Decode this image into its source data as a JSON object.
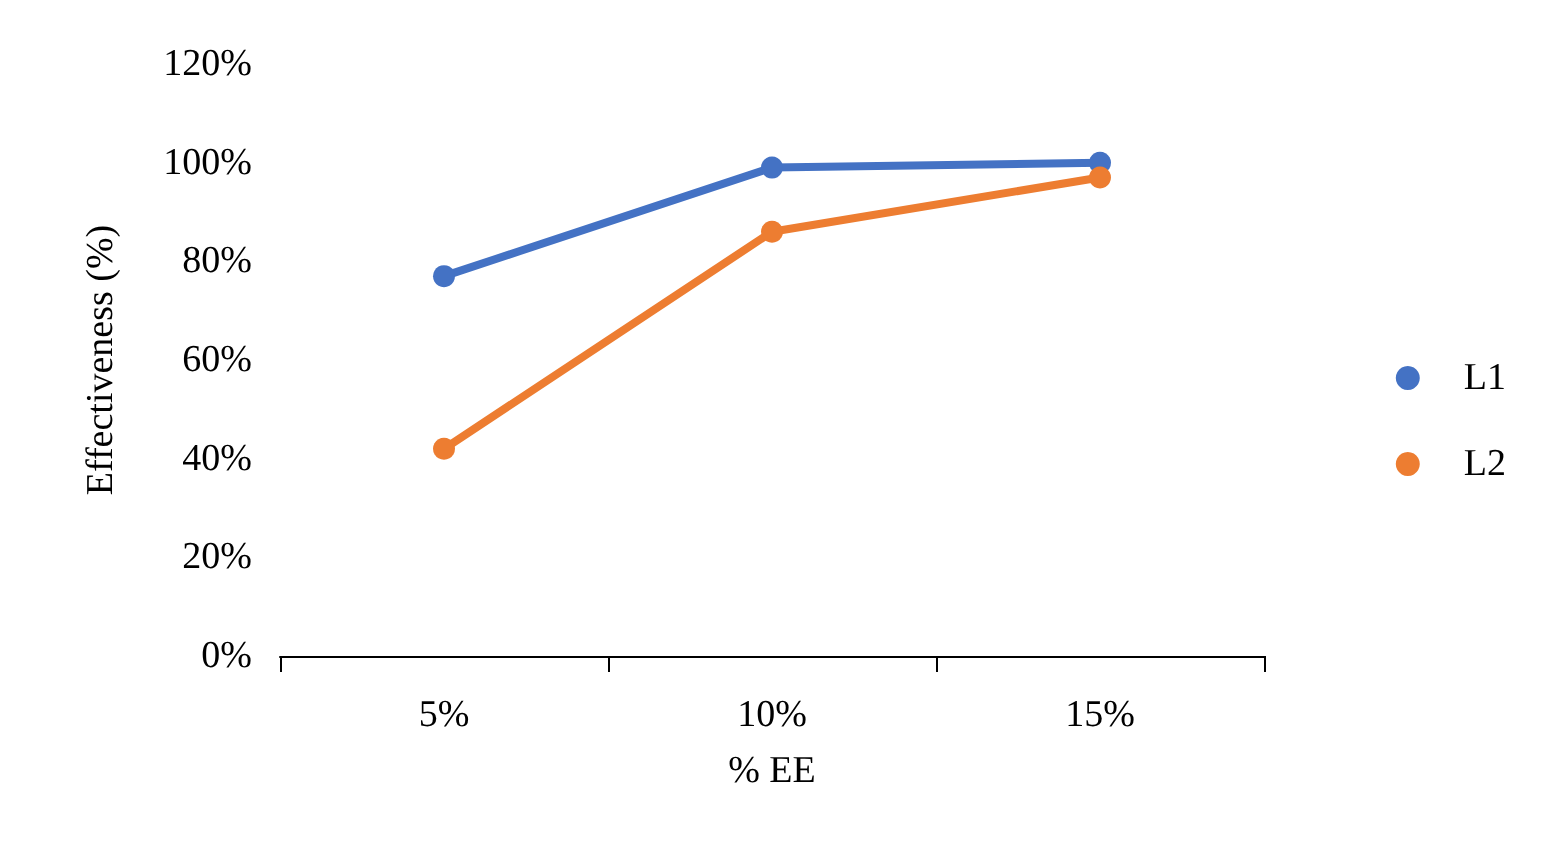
{
  "chart_data": {
    "type": "line",
    "xlabel": "% EE",
    "ylabel": "Effectiveness (%)",
    "categories": [
      "5%",
      "10%",
      "15%"
    ],
    "series": [
      {
        "name": "L1",
        "color": "#4472c4",
        "values": [
          77,
          99,
          100
        ]
      },
      {
        "name": "L2",
        "color": "#ed7d31",
        "values": [
          42,
          86,
          97
        ]
      }
    ],
    "ylim": [
      0,
      120
    ],
    "yticks": [
      {
        "value": 0,
        "label": "0%"
      },
      {
        "value": 20,
        "label": "20%"
      },
      {
        "value": 40,
        "label": "40%"
      },
      {
        "value": 60,
        "label": "60%"
      },
      {
        "value": 80,
        "label": "80%"
      },
      {
        "value": 100,
        "label": "100%"
      },
      {
        "value": 120,
        "label": "120%"
      }
    ],
    "grid": false,
    "legend": "right",
    "marker": "circle",
    "line_style": "solid"
  }
}
